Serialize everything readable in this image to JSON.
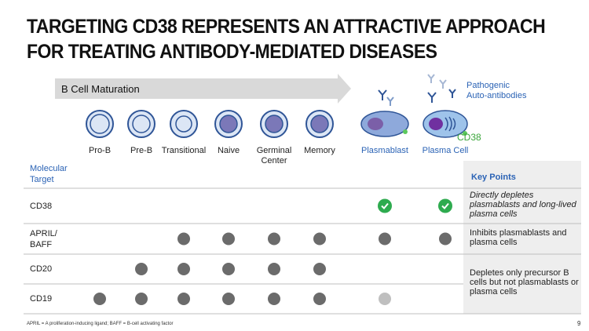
{
  "title": [
    "TARGETING CD38 REPRESENTS AN ATTRACTIVE APPROACH",
    "FOR TREATING ANTIBODY-MEDIATED DISEASES"
  ],
  "arrow_label": "B Cell Maturation",
  "antibody_label": [
    "Pathogenic",
    "Auto-antibodies"
  ],
  "cd38_label": "CD38",
  "stages": [
    "Pro-B",
    "Pre-B",
    "Transitional",
    "Naive",
    "Germinal Center",
    "Memory",
    "Plasmablast",
    "Plasma Cell"
  ],
  "table": {
    "header": "Molecular Target",
    "rows": [
      {
        "target": "CD38",
        "marks": [
          null,
          null,
          null,
          null,
          null,
          null,
          "check",
          "check"
        ]
      },
      {
        "target": "APRIL/ BAFF",
        "marks": [
          null,
          null,
          "dot",
          "dot",
          "dot",
          "dot",
          "dot",
          "dot"
        ]
      },
      {
        "target": "CD20",
        "marks": [
          null,
          "dot",
          "dot",
          "dot",
          "dot",
          "dot",
          null,
          null
        ]
      },
      {
        "target": "CD19",
        "marks": [
          "dot",
          "dot",
          "dot",
          "dot",
          "dot",
          "dot",
          "faint",
          null
        ]
      }
    ]
  },
  "key_points": {
    "header": "Key Points",
    "items": [
      "Directly depletes plasmablasts and long-lived plasma cells",
      "Inhibits plasmablasts and plasma cells",
      "Depletes only precursor B cells but not plasmablasts or plasma cells"
    ]
  },
  "footnote": "APRIL = A proliferation-inducing ligand; BAFF = B-cell activating factor",
  "page_number": "9"
}
